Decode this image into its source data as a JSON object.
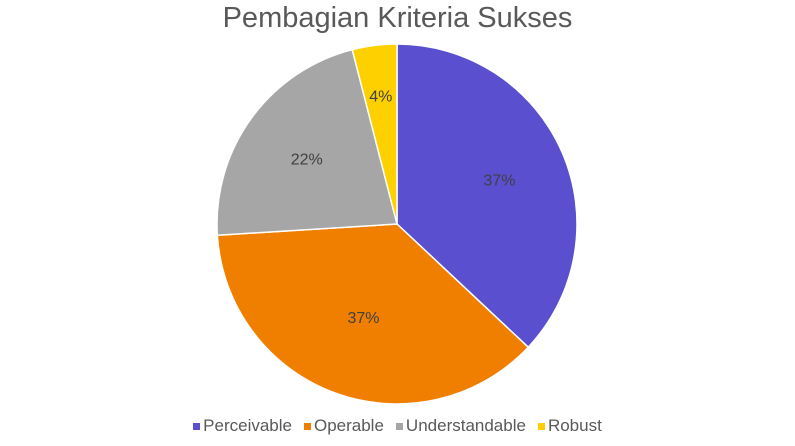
{
  "chart_data": {
    "type": "pie",
    "title": "Pembagian Kriteria Sukses",
    "categories": [
      "Perceivable",
      "Operable",
      "Understandable",
      "Robust"
    ],
    "values": [
      37,
      37,
      22,
      4
    ],
    "labels": [
      "37%",
      "37%",
      "22%",
      "4%"
    ],
    "colors": [
      "#5a4fcf",
      "#f07f00",
      "#a6a6a6",
      "#ffd000"
    ],
    "legend_position": "bottom"
  }
}
